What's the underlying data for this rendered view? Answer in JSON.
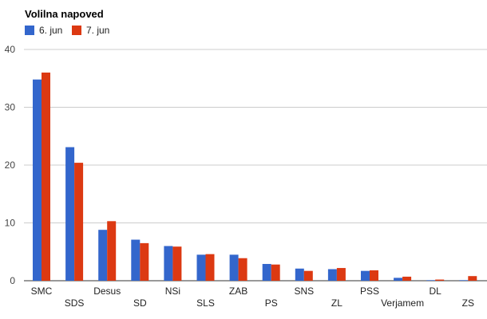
{
  "chart_data": {
    "type": "bar",
    "title": "Volilna napoved",
    "xlabel": "",
    "ylabel": "",
    "ylim": [
      0,
      40
    ],
    "yticks": [
      0,
      10,
      20,
      30,
      40
    ],
    "grid": true,
    "legend_position": "top-left",
    "categories": [
      "SMC",
      "SDS",
      "Desus",
      "SD",
      "NSi",
      "SLS",
      "ZAB",
      "PS",
      "SNS",
      "ZL",
      "PSS",
      "Verjamem",
      "DL",
      "ZS"
    ],
    "series": [
      {
        "name": "6. jun",
        "color": "#3366cc",
        "values": [
          34.8,
          23.1,
          8.8,
          7.1,
          6.0,
          4.5,
          4.5,
          2.9,
          2.1,
          2.0,
          1.7,
          0.5,
          0.1,
          0.1
        ]
      },
      {
        "name": "7. jun",
        "color": "#dc3912",
        "values": [
          36.0,
          20.4,
          10.3,
          6.5,
          5.9,
          4.6,
          3.9,
          2.8,
          1.7,
          2.2,
          1.8,
          0.7,
          0.2,
          0.8
        ]
      }
    ]
  }
}
